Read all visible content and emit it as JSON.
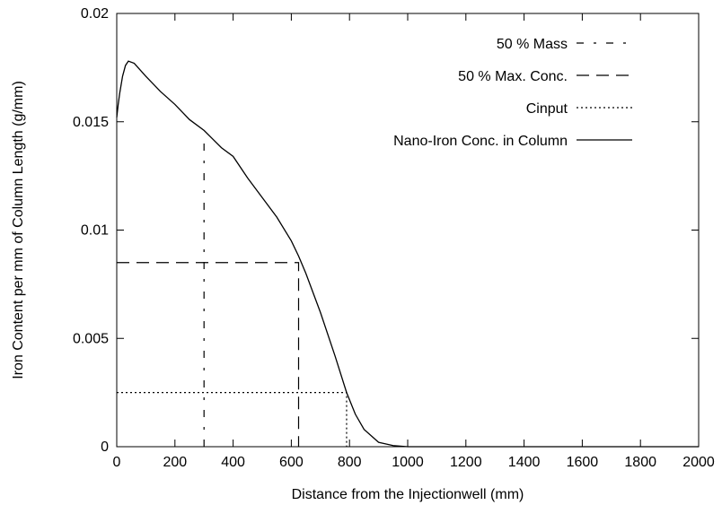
{
  "chart_data": {
    "type": "line",
    "xlabel": "Distance from the Injectionwell (mm)",
    "ylabel": "Iron Content per mm of Column Length (g/mm)",
    "xlim": [
      0,
      2000
    ],
    "ylim": [
      0,
      0.02
    ],
    "xticks": [
      "0",
      "200",
      "400",
      "600",
      "800",
      "1000",
      "1200",
      "1400",
      "1600",
      "1800",
      "2000"
    ],
    "yticks": [
      "0",
      "0.005",
      "0.01",
      "0.015",
      "0.02"
    ],
    "grid": false,
    "legend_position": "top-right",
    "series": [
      {
        "name": "50 % Mass",
        "style": "dash-dot",
        "points": [
          [
            300,
            0
          ],
          [
            300,
            0.0143
          ]
        ]
      },
      {
        "name": "50 % Max. Conc.",
        "style": "long-dash",
        "points": [
          [
            0,
            0.0085
          ],
          [
            625,
            0.0085
          ],
          [
            625,
            0
          ]
        ]
      },
      {
        "name": "Cinput",
        "style": "dotted",
        "points": [
          [
            0,
            0.0025
          ],
          [
            790,
            0.0025
          ],
          [
            790,
            0
          ]
        ]
      },
      {
        "name": "Nano-Iron Conc. in Column",
        "style": "solid",
        "points": [
          [
            0,
            0.0152
          ],
          [
            5,
            0.0158
          ],
          [
            10,
            0.0163
          ],
          [
            20,
            0.0171
          ],
          [
            30,
            0.0176
          ],
          [
            40,
            0.0178
          ],
          [
            60,
            0.0177
          ],
          [
            80,
            0.0174
          ],
          [
            100,
            0.0171
          ],
          [
            150,
            0.0164
          ],
          [
            200,
            0.0158
          ],
          [
            250,
            0.0151
          ],
          [
            300,
            0.0146
          ],
          [
            330,
            0.0142
          ],
          [
            360,
            0.0138
          ],
          [
            400,
            0.0134
          ],
          [
            450,
            0.0124
          ],
          [
            500,
            0.0115
          ],
          [
            550,
            0.0106
          ],
          [
            600,
            0.0095
          ],
          [
            625,
            0.0088
          ],
          [
            650,
            0.008
          ],
          [
            700,
            0.0062
          ],
          [
            750,
            0.0042
          ],
          [
            790,
            0.0025
          ],
          [
            820,
            0.0015
          ],
          [
            850,
            0.0008
          ],
          [
            900,
            0.0002
          ],
          [
            950,
            5e-05
          ],
          [
            1000,
            0.0
          ],
          [
            1200,
            0.0
          ],
          [
            1600,
            0.0
          ],
          [
            2000,
            0.0
          ]
        ]
      }
    ]
  }
}
